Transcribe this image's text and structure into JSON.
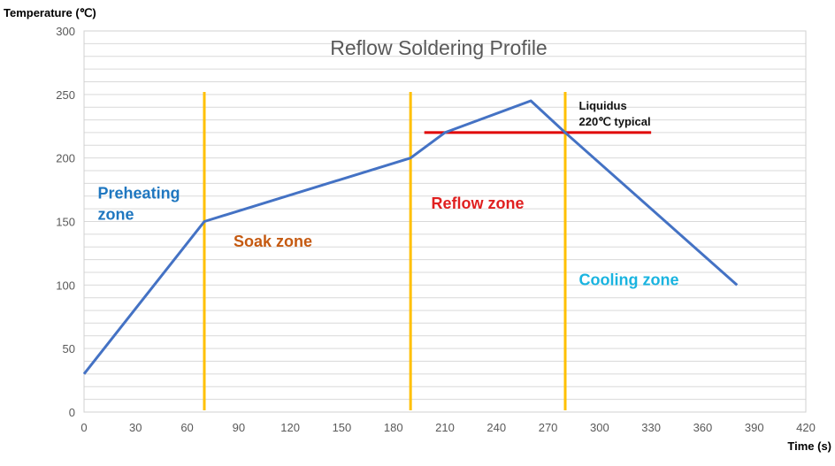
{
  "chart_data": {
    "type": "line",
    "title": "Reflow Soldering Profile",
    "xlabel": "Time (s)",
    "ylabel": "Temperature (℃)",
    "xlim": [
      0,
      420
    ],
    "ylim": [
      0,
      300
    ],
    "xticks": [
      0,
      30,
      60,
      90,
      120,
      150,
      180,
      210,
      240,
      270,
      300,
      330,
      360,
      390,
      420
    ],
    "yticks": [
      0,
      50,
      100,
      150,
      200,
      250,
      300
    ],
    "grid": "horizontal minor every 10",
    "series": [
      {
        "color": "#4472C4",
        "x": [
          0,
          70,
          190,
          210,
          260,
          280,
          380
        ],
        "y": [
          30,
          150,
          200,
          220,
          245,
          220,
          100
        ]
      }
    ],
    "zone_boundaries": {
      "x": [
        70,
        190,
        280
      ],
      "y_top": 252,
      "color": "#FFC000"
    },
    "liquidus_line": {
      "y": 220,
      "x_start": 198,
      "x_end": 330,
      "color": "#E00000"
    },
    "annotations": [
      {
        "lines": [
          "Preheating",
          "zone"
        ],
        "x": 8,
        "y": 168,
        "color": "#1F77C0"
      },
      {
        "lines": [
          "Soak zone"
        ],
        "x": 87,
        "y": 130,
        "color": "#C55A11"
      },
      {
        "lines": [
          "Reflow zone"
        ],
        "x": 202,
        "y": 160,
        "color": "#E02020"
      },
      {
        "lines": [
          "Cooling zone"
        ],
        "x": 288,
        "y": 100,
        "color": "#1AB4E0"
      },
      {
        "lines": [
          "Liquidus",
          "220℃ typical"
        ],
        "x": 288,
        "y": 238,
        "color": "#111111"
      }
    ]
  }
}
